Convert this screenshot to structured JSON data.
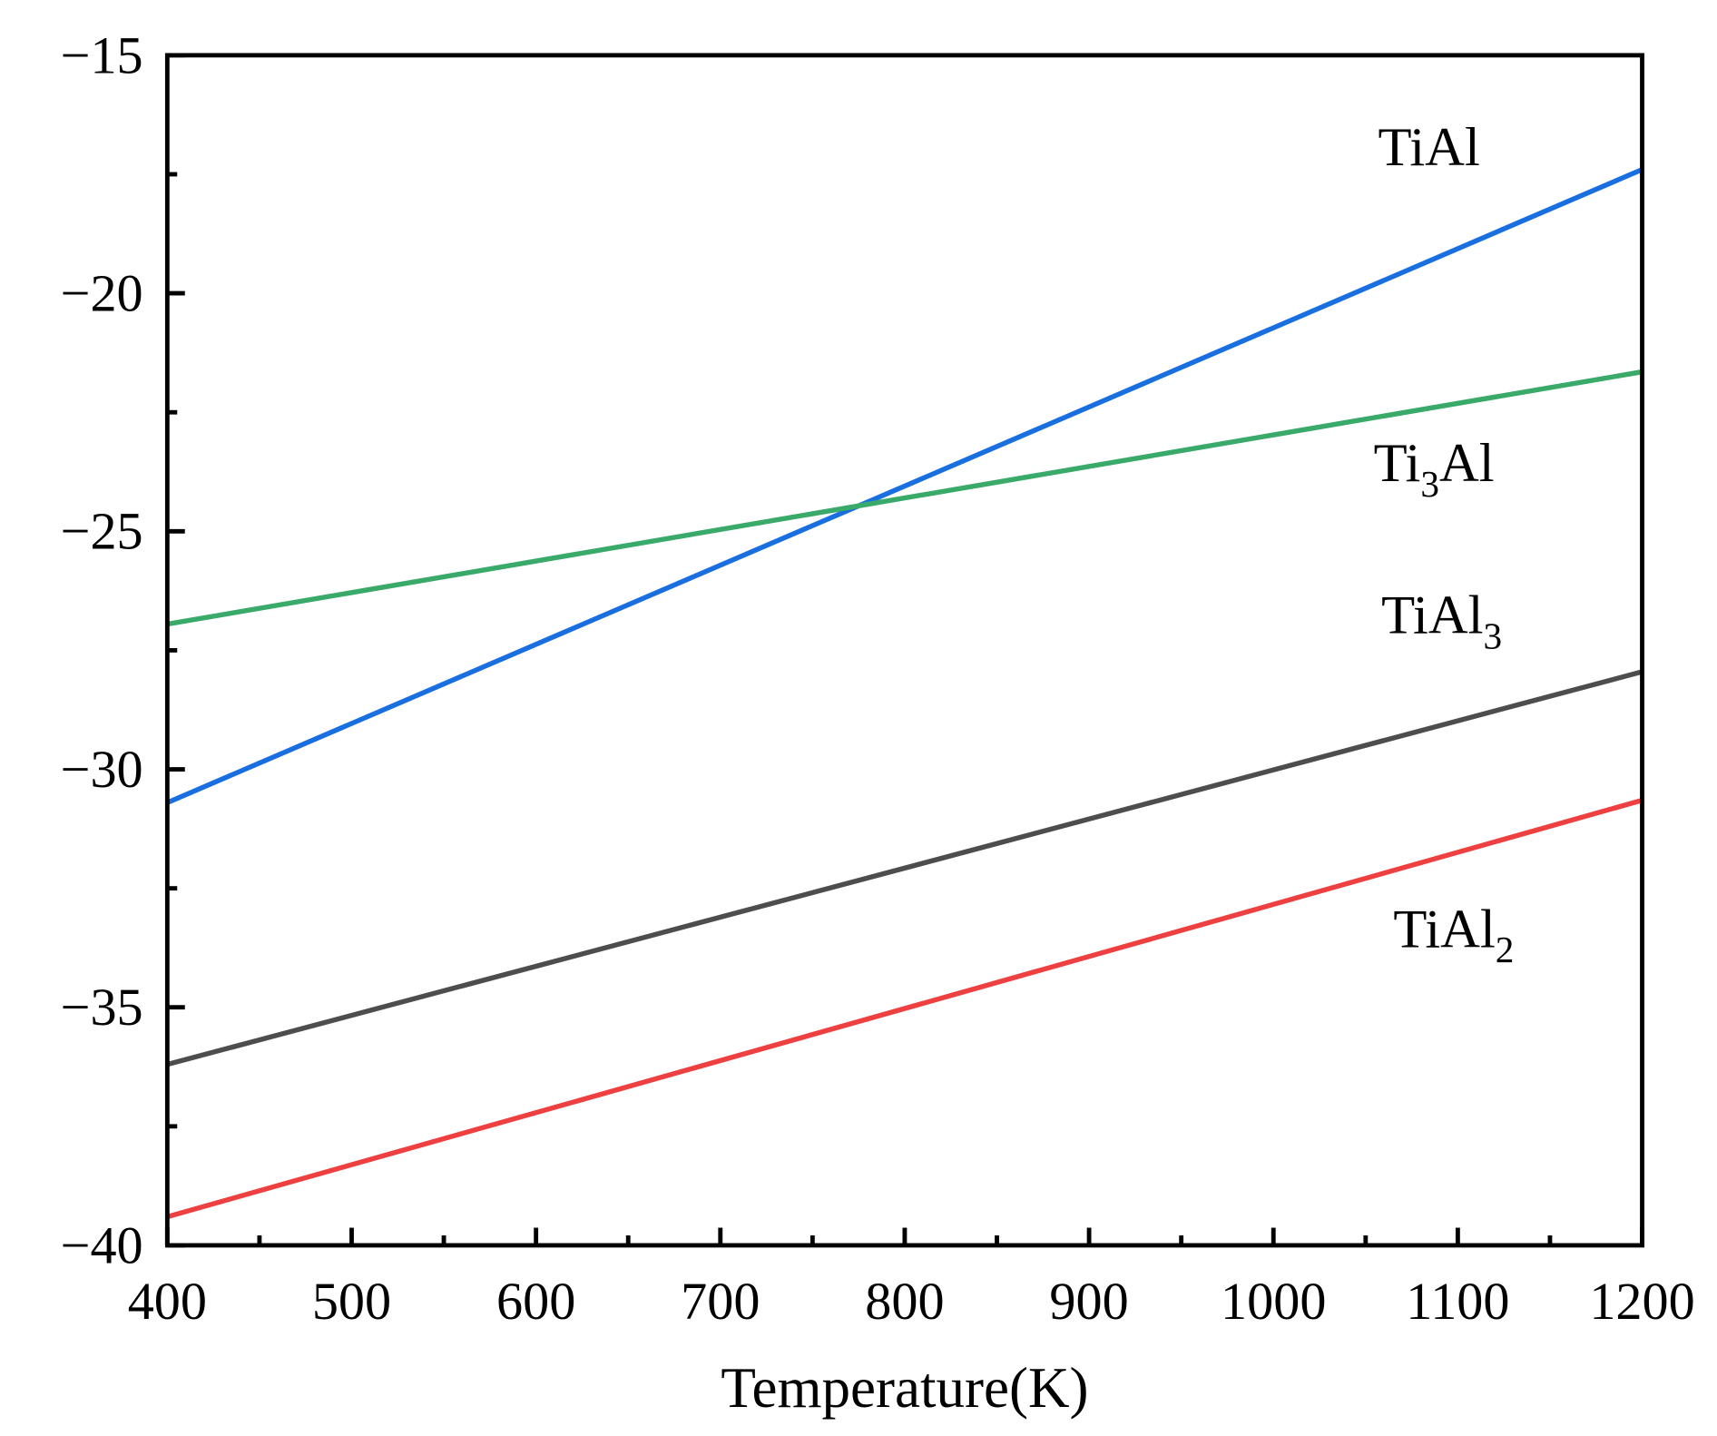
{
  "chart_data": {
    "type": "line",
    "title": "",
    "xlabel": "Temperature(K)",
    "ylabel": "",
    "xlim": [
      400,
      1200
    ],
    "ylim": [
      -40,
      -15
    ],
    "xticks": [
      400,
      500,
      600,
      700,
      800,
      900,
      1000,
      1100,
      1200
    ],
    "yticks": [
      -15,
      -20,
      -25,
      -30,
      -35,
      -40
    ],
    "xtick_labels": [
      "400",
      "500",
      "600",
      "700",
      "800",
      "900",
      "1000",
      "1100",
      "1200"
    ],
    "ytick_labels": [
      "−15",
      "−20",
      "−25",
      "−30",
      "−35",
      "−40"
    ],
    "grid": false,
    "legend": "none (inline labels)",
    "series": [
      {
        "name": "TiAl",
        "label_main": "TiAl",
        "label_sub": "",
        "label_tail": "",
        "color": "#1a6fe0",
        "x": [
          400,
          1200
        ],
        "y": [
          -30.7,
          -17.4
        ]
      },
      {
        "name": "Ti3Al",
        "label_main": "Ti",
        "label_sub": "3",
        "label_tail": "Al",
        "color": "#3aaa6a",
        "x": [
          400,
          1200
        ],
        "y": [
          -26.95,
          -21.65
        ]
      },
      {
        "name": "TiAl3",
        "label_main": "TiAl",
        "label_sub": "3",
        "label_tail": "",
        "color": "#4d4d4d",
        "x": [
          400,
          1200
        ],
        "y": [
          -36.2,
          -27.95
        ]
      },
      {
        "name": "TiAl2",
        "label_main": "TiAl",
        "label_sub": "2",
        "label_tail": "",
        "color": "#ee4040",
        "x": [
          400,
          1200
        ],
        "y": [
          -39.4,
          -30.65
        ]
      }
    ]
  }
}
